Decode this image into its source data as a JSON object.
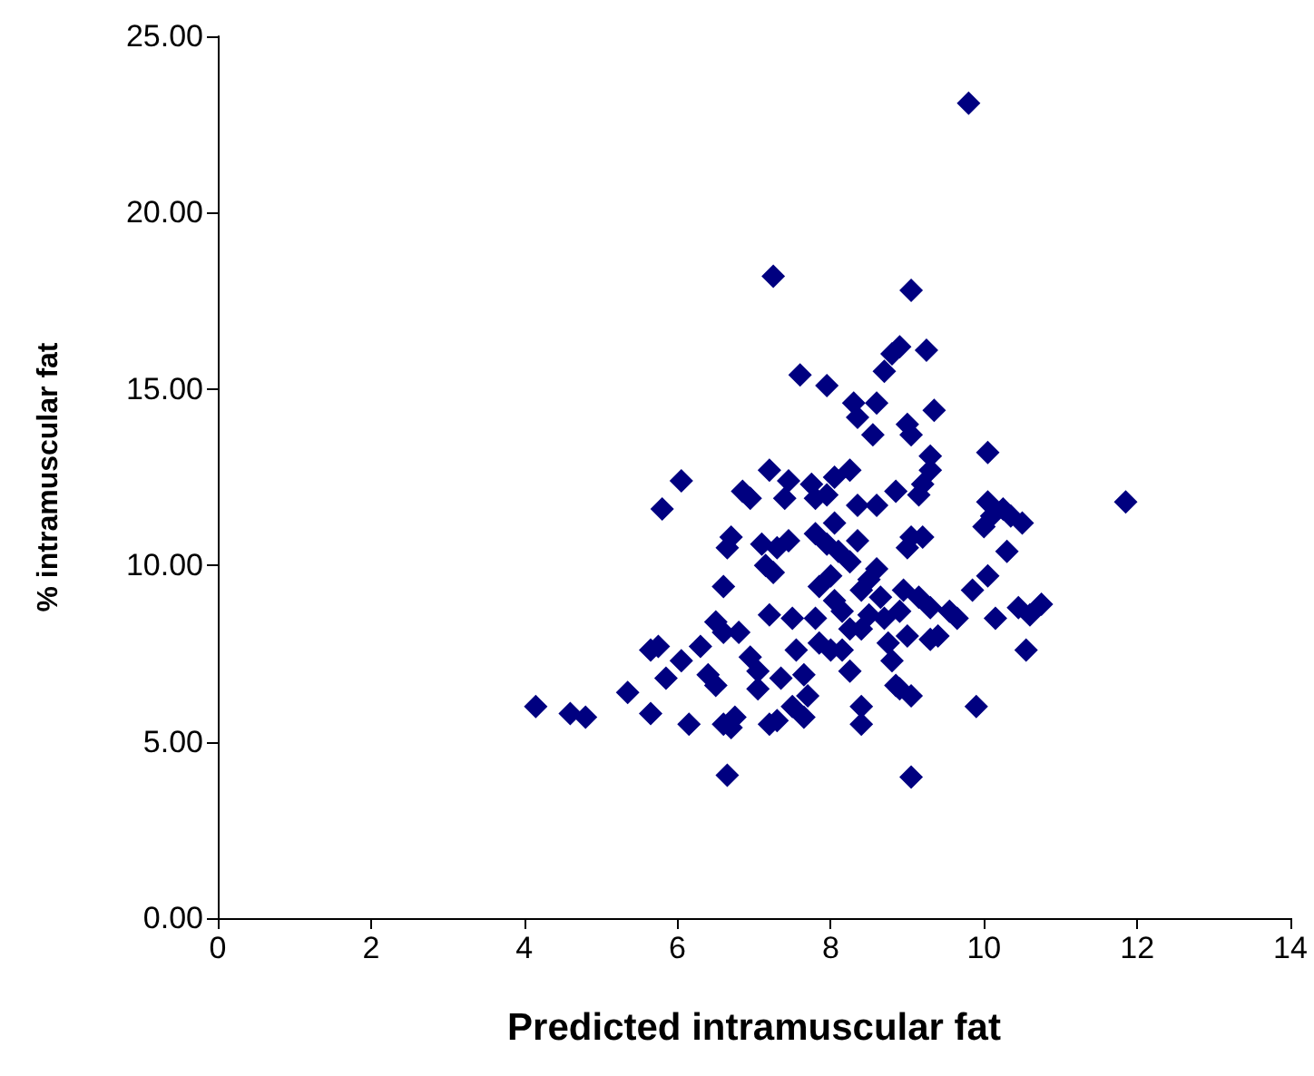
{
  "chart_data": {
    "type": "scatter",
    "xlabel": "Predicted intramuscular fat",
    "ylabel": "% intramuscular fat",
    "xlim": [
      0,
      14
    ],
    "xticks": [
      0,
      2,
      4,
      6,
      8,
      10,
      12,
      14
    ],
    "ylim": [
      0,
      25
    ],
    "yticks": [
      {
        "value": 0,
        "label": "0.00"
      },
      {
        "value": 5,
        "label": "5.00"
      },
      {
        "value": 10,
        "label": "10.00"
      },
      {
        "value": 15,
        "label": "15.00"
      },
      {
        "value": 20,
        "label": "20.00"
      },
      {
        "value": 25,
        "label": "25.00"
      }
    ],
    "grid": false,
    "marker": "diamond",
    "series": [
      {
        "color": "#000080",
        "x": [
          4.15,
          4.6,
          4.8,
          5.35,
          5.65,
          5.65,
          5.75,
          5.85,
          5.8,
          6.05,
          6.05,
          6.15,
          6.3,
          6.4,
          6.5,
          6.5,
          6.6,
          6.6,
          6.6,
          6.65,
          6.7,
          6.75,
          6.65,
          6.7,
          6.8,
          6.85,
          6.95,
          6.95,
          7.05,
          7.05,
          7.1,
          7.15,
          7.2,
          7.2,
          7.2,
          7.25,
          7.25,
          7.3,
          7.3,
          7.35,
          7.4,
          7.45,
          7.45,
          7.5,
          7.5,
          7.55,
          7.6,
          7.65,
          7.65,
          7.7,
          7.75,
          7.8,
          7.8,
          7.85,
          7.8,
          7.85,
          7.95,
          7.95,
          7.95,
          8.0,
          8.0,
          8.05,
          8.05,
          8.05,
          8.1,
          8.15,
          8.15,
          8.25,
          8.25,
          8.25,
          8.25,
          8.3,
          8.35,
          8.35,
          8.35,
          8.4,
          8.4,
          8.4,
          8.4,
          8.5,
          8.5,
          8.55,
          8.6,
          8.6,
          8.6,
          8.65,
          8.7,
          8.7,
          8.75,
          8.8,
          8.8,
          8.85,
          8.85,
          8.9,
          8.9,
          8.9,
          8.95,
          9.0,
          9.0,
          9.0,
          9.05,
          9.05,
          9.05,
          9.05,
          9.05,
          9.15,
          9.15,
          9.2,
          9.2,
          9.25,
          9.3,
          9.3,
          9.3,
          9.3,
          9.35,
          9.4,
          9.55,
          9.65,
          9.8,
          9.85,
          9.9,
          10.0,
          10.05,
          10.05,
          10.05,
          10.1,
          10.15,
          10.25,
          10.3,
          10.35,
          10.45,
          10.5,
          10.55,
          10.6,
          10.75,
          11.85
        ],
        "values": [
          6.0,
          5.8,
          5.7,
          6.4,
          5.8,
          7.6,
          7.7,
          6.8,
          11.6,
          12.4,
          7.3,
          5.5,
          7.7,
          6.9,
          6.6,
          8.4,
          8.1,
          9.4,
          5.5,
          4.05,
          5.4,
          5.7,
          10.5,
          10.8,
          8.1,
          12.1,
          11.9,
          7.4,
          7.0,
          6.5,
          10.6,
          10.0,
          12.7,
          8.6,
          5.5,
          18.2,
          9.8,
          10.5,
          5.6,
          6.8,
          11.9,
          12.4,
          10.7,
          8.5,
          6.0,
          7.6,
          15.4,
          5.7,
          6.9,
          6.3,
          12.3,
          11.9,
          10.9,
          9.4,
          8.5,
          7.8,
          15.1,
          12.0,
          10.6,
          9.7,
          7.6,
          12.5,
          11.2,
          9.0,
          10.4,
          7.6,
          8.7,
          12.7,
          10.1,
          8.2,
          7.0,
          14.6,
          14.2,
          10.7,
          11.7,
          9.3,
          8.2,
          6.0,
          5.5,
          9.6,
          8.6,
          13.7,
          14.6,
          11.7,
          9.9,
          9.1,
          8.5,
          15.5,
          7.8,
          16.0,
          7.3,
          12.1,
          6.6,
          16.2,
          8.7,
          6.5,
          9.3,
          14.0,
          10.5,
          8.0,
          17.8,
          4.0,
          13.7,
          10.8,
          6.3,
          9.1,
          12.0,
          12.3,
          10.8,
          16.1,
          13.1,
          12.7,
          8.8,
          7.9,
          14.4,
          8.0,
          8.7,
          8.5,
          23.1,
          9.3,
          6.0,
          11.1,
          11.8,
          13.2,
          9.7,
          11.4,
          8.5,
          11.6,
          10.4,
          11.4,
          8.8,
          11.2,
          7.6,
          8.6,
          8.9,
          11.8
        ]
      }
    ]
  }
}
